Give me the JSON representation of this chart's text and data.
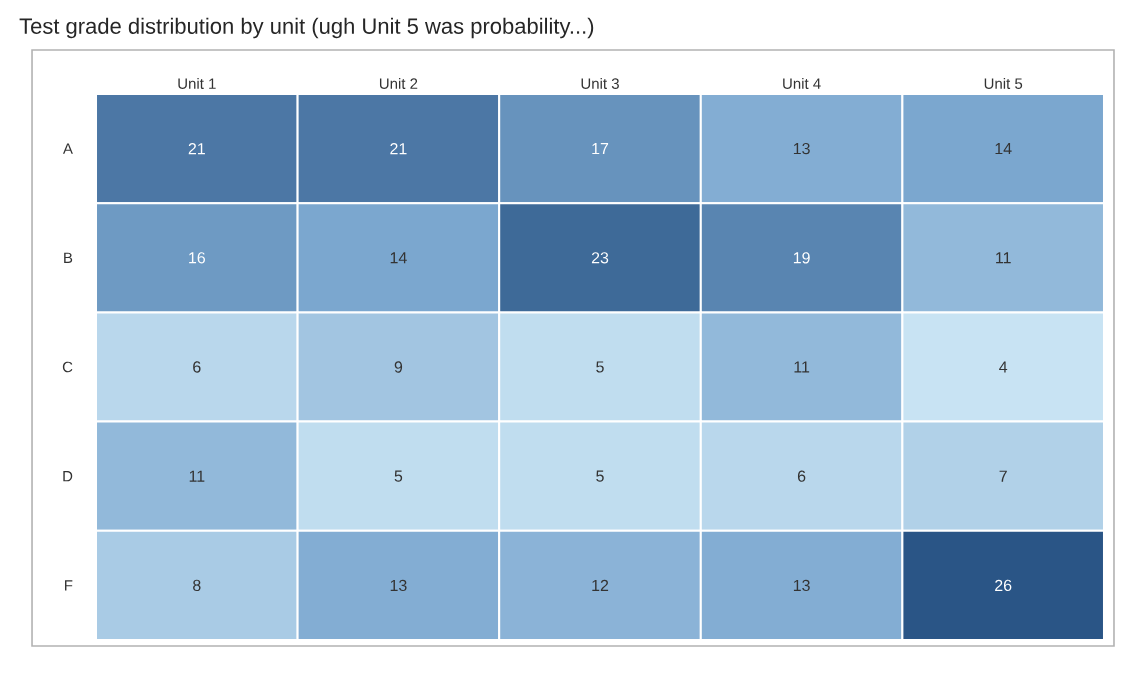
{
  "chart_data": {
    "type": "heatmap",
    "title": "Test grade distribution by unit (ugh Unit 5 was probability...)",
    "categories": [
      "Unit 1",
      "Unit 2",
      "Unit 3",
      "Unit 4",
      "Unit 5"
    ],
    "y_categories": [
      "A",
      "B",
      "C",
      "D",
      "F"
    ],
    "cells": [
      [
        21,
        21,
        17,
        13,
        14
      ],
      [
        16,
        14,
        23,
        19,
        11
      ],
      [
        6,
        9,
        5,
        11,
        4
      ],
      [
        11,
        5,
        5,
        6,
        7
      ],
      [
        8,
        13,
        12,
        13,
        26
      ]
    ],
    "data_labels": true
  }
}
